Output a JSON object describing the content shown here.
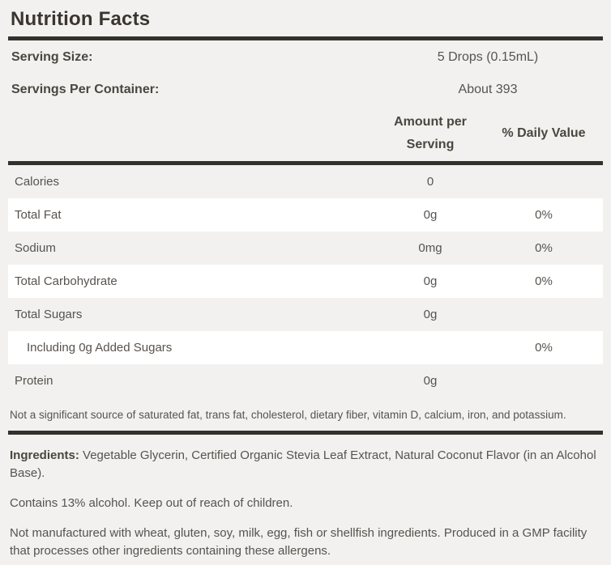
{
  "label": {
    "title": "Nutrition Facts",
    "serving_info": [
      {
        "label": "Serving Size:",
        "value": "5 Drops (0.15mL)"
      },
      {
        "label": "Servings Per Container:",
        "value": "About 393"
      }
    ],
    "columns": {
      "amount": "Amount per Serving",
      "daily_value": "% Daily Value"
    },
    "rows": [
      {
        "name": "Calories",
        "amount": "0",
        "daily_value": ""
      },
      {
        "name": "Total Fat",
        "amount": "0g",
        "daily_value": "0%"
      },
      {
        "name": "Sodium",
        "amount": "0mg",
        "daily_value": "0%"
      },
      {
        "name": "Total Carbohydrate",
        "amount": "0g",
        "daily_value": "0%"
      },
      {
        "name": "Total Sugars",
        "amount": "0g",
        "daily_value": ""
      },
      {
        "name": "Including 0g Added Sugars",
        "amount": "",
        "daily_value": "0%"
      },
      {
        "name": "Protein",
        "amount": "0g",
        "daily_value": ""
      }
    ],
    "footnote": "Not a significant source of saturated fat, trans fat, cholesterol, dietary fiber, vitamin D, calcium, iron, and potassium.",
    "ingredients_label": "Ingredients:",
    "ingredients_text": " Vegetable Glycerin, Certified Organic Stevia Leaf Extract, Natural Coconut Flavor (in an Alcohol Base).",
    "alcohol_warning": "Contains 13% alcohol. Keep out of reach of children.",
    "allergen_statement": "Not manufactured with wheat, gluten, soy, milk, egg, fish or shellfish ingredients. Produced in a GMP facility that processes other ingredients containing these allergens."
  },
  "colors": {
    "background": "#f2f1ef",
    "row_highlight": "#ffffff",
    "divider": "#33312b",
    "title_text": "#3a352f",
    "label_text": "#4b463f",
    "body_text": "#57534e"
  }
}
